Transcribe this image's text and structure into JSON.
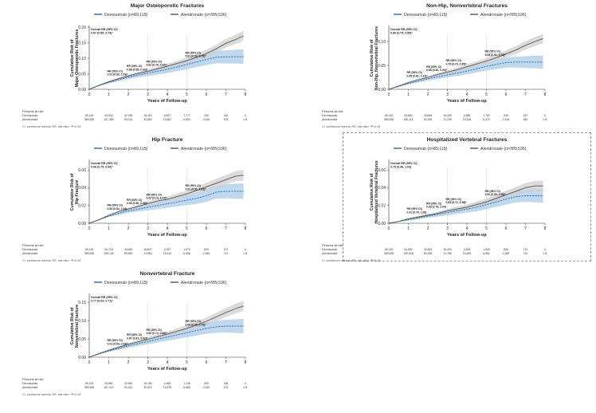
{
  "colors": {
    "denosumab": "#1f6fb3",
    "alendronate": "#555555",
    "denosumab_ci": "#a9cbe8",
    "alendronate_ci": "#cfcfcf",
    "axis": "#333333",
    "dashed_border": "#999999"
  },
  "chart_data": [
    {
      "type": "line",
      "title": "Major Osteoporotic Fractures",
      "ylabel": "Cumulative Risk of Major Osteoporotic Fractures",
      "xlabel": "Years of Follow-up",
      "xlim": [
        0,
        8
      ],
      "ylim": [
        0,
        0.2
      ],
      "yticks": [
        0.0,
        0.05,
        0.1,
        0.15,
        0.2
      ],
      "ytick_labels": [
        "0.00",
        "0.05",
        "0.10",
        "0.15",
        "0.20"
      ],
      "xtick_labels": [
        "0",
        "1",
        "2",
        "3",
        "4",
        "5",
        "6",
        "7",
        "8"
      ],
      "legend": [
        "Denosumab (n=89,115)",
        "Alendronate (n=389,536)"
      ],
      "overall_label": [
        "Overall RR (95% CI)",
        "0.87 (0.85, 0.79)*"
      ],
      "ref_years": [
        3,
        5
      ],
      "annotations": [
        {
          "t": 1,
          "y": 0.035,
          "lines": [
            "RR (95% CI)",
            "0.91 (0.83, 0.93)*"
          ]
        },
        {
          "t": 2,
          "y": 0.051,
          "lines": [
            "RR (95% CI)",
            "0.88 (0.85, 0.93)*"
          ]
        },
        {
          "t": 3,
          "y": 0.066,
          "lines": [
            "RR (95% CI)",
            "0.82 (0.78, 0.87)*"
          ]
        },
        {
          "t": 5,
          "y": 0.094,
          "lines": [
            "RR (95% CI)",
            "0.81 (0.53, 0.78)*"
          ]
        }
      ],
      "series": [
        {
          "name": "Denosumab",
          "ci_width": 0.024,
          "x": [
            0,
            0.5,
            1,
            1.5,
            2,
            2.5,
            3,
            3.5,
            4,
            4.5,
            5,
            5.5,
            6,
            6.5,
            7,
            7.5,
            7.9
          ],
          "y": [
            0,
            0.012,
            0.022,
            0.031,
            0.039,
            0.046,
            0.052,
            0.058,
            0.064,
            0.072,
            0.08,
            0.088,
            0.096,
            0.103,
            0.104,
            0.105,
            0.105
          ]
        },
        {
          "name": "Alendronate",
          "ci_width": 0.016,
          "x": [
            0,
            0.5,
            1,
            1.5,
            2,
            2.5,
            3,
            3.5,
            4,
            4.5,
            5,
            5.5,
            6,
            6.5,
            7,
            7.5,
            7.9
          ],
          "y": [
            0,
            0.013,
            0.024,
            0.034,
            0.043,
            0.051,
            0.058,
            0.066,
            0.074,
            0.083,
            0.092,
            0.103,
            0.115,
            0.13,
            0.148,
            0.16,
            0.172
          ]
        }
      ],
      "risk_table": {
        "heading": "Persons at risk",
        "rows": [
          {
            "label": "Denosumab",
            "values": [
              "89,115",
              "53,532",
              "32,795",
              "18,119",
              "8,837",
              "7,777",
              "330",
              "162",
              "0"
            ]
          },
          {
            "label": "Alendronate",
            "values": [
              "389,536",
              "157,389",
              "94,013",
              "30,880",
              "14,887",
              "6,503",
              "2,616",
              "476",
              "<11"
            ]
          }
        ]
      },
      "footnote": "CI, confidence interval; RR, risk ratio; *P<0.05"
    },
    {
      "type": "line",
      "title": "Non-Hip, Nonvertebral Fractures",
      "ylabel": "Cumulative Risk of Non-Hip, Nonvertebral Fractures",
      "xlabel": "Years of Follow-up",
      "xlim": [
        0,
        8
      ],
      "ylim": [
        0,
        0.13
      ],
      "yticks": [
        0.0,
        0.05,
        0.1
      ],
      "ytick_labels": [
        "0.00",
        "0.05",
        "0.10"
      ],
      "xtick_labels": [
        "0",
        "1",
        "2",
        "3",
        "4",
        "5",
        "6",
        "7",
        "8"
      ],
      "legend": [
        "Denosumab (n=89,115)",
        "Alendronate (n=389,536)"
      ],
      "overall_label": [
        "Overall RR (95% CI)",
        "0.80 (0.75, 0.85)*"
      ],
      "ref_years": [
        3,
        5
      ],
      "annotations": [
        {
          "t": 1,
          "y": 0.02,
          "lines": [
            "RR (95% CI)",
            "0.85 (0.81, 0.97)*"
          ]
        },
        {
          "t": 2,
          "y": 0.032,
          "lines": [
            "RR (95% CI)",
            "0.88 (0.80, 0.93)*"
          ]
        },
        {
          "t": 3,
          "y": 0.045,
          "lines": [
            "RR (95% CI)",
            "0.78 (0.73, 0.85)*"
          ]
        },
        {
          "t": 5,
          "y": 0.064,
          "lines": [
            "RR (95% CI)",
            "0.85 (0.51, 0.78)*"
          ]
        }
      ],
      "series": [
        {
          "name": "Denosumab",
          "ci_width": 0.014,
          "x": [
            0,
            0.5,
            1,
            1.5,
            2,
            2.5,
            3,
            3.5,
            4,
            4.5,
            5,
            5.5,
            6,
            6.5,
            7,
            7.5,
            7.9
          ],
          "y": [
            0,
            0.006,
            0.012,
            0.017,
            0.022,
            0.026,
            0.03,
            0.034,
            0.038,
            0.043,
            0.048,
            0.052,
            0.056,
            0.057,
            0.057,
            0.057,
            0.057
          ]
        },
        {
          "name": "Alendronate",
          "ci_width": 0.01,
          "x": [
            0,
            0.5,
            1,
            1.5,
            2,
            2.5,
            3,
            3.5,
            4,
            4.5,
            5,
            5.5,
            6,
            6.5,
            7,
            7.5,
            7.9
          ],
          "y": [
            0,
            0.007,
            0.014,
            0.02,
            0.025,
            0.031,
            0.036,
            0.041,
            0.047,
            0.053,
            0.059,
            0.066,
            0.074,
            0.082,
            0.092,
            0.1,
            0.106
          ]
        }
      ],
      "risk_table": {
        "heading": "Persons at risk",
        "rows": [
          {
            "label": "Denosumab",
            "values": [
              "89,115",
              "53,860",
              "33,659",
              "16,339",
              "4,686",
              "1,782",
              "939",
              "167",
              "0"
            ]
          },
          {
            "label": "Alendronate",
            "values": [
              "389,536",
              "156,421",
              "93,159",
              "31,208",
              "15,126",
              "6,470",
              "2,418",
              "482",
              "<11"
            ]
          }
        ]
      },
      "footnote": "CI, confidence interval; RR, risk ratio; *P<0.05"
    },
    {
      "type": "line",
      "title": "Hip Fracture",
      "ylabel": "Cumulative Risk of Hip Fracture",
      "xlabel": "Years of Follow-up",
      "xlim": [
        0,
        8
      ],
      "ylim": [
        0,
        0.07
      ],
      "yticks": [
        0.0,
        0.02,
        0.04,
        0.06
      ],
      "ytick_labels": [
        "0.00",
        "0.02",
        "0.04",
        "0.06"
      ],
      "xtick_labels": [
        "0",
        "1",
        "2",
        "3",
        "4",
        "5",
        "6",
        "7",
        "8"
      ],
      "legend": [
        "Denosumab (n=89,115)",
        "Alendronate (n=389,536)"
      ],
      "overall_label": [
        "Overall RR (95% CI)",
        "0.68 (0.75, 0.90)*"
      ],
      "ref_years": [
        3,
        5
      ],
      "annotations": [
        {
          "t": 1,
          "y": 0.012,
          "lines": [
            "RR (95% CI)",
            "0.84 (0.84, 1.04)"
          ]
        },
        {
          "t": 2,
          "y": 0.018,
          "lines": [
            "RR (95% CI)",
            "0.85 (0.80, 0.98)*"
          ]
        },
        {
          "t": 3,
          "y": 0.024,
          "lines": [
            "RR (95% CI)",
            "0.82 (0.74, 0.77)*"
          ]
        },
        {
          "t": 5,
          "y": 0.034,
          "lines": [
            "RR (95% CI)",
            "0.81 (0.51, 0.63)*"
          ]
        }
      ],
      "series": [
        {
          "name": "Denosumab",
          "ci_width": 0.009,
          "x": [
            0,
            0.5,
            1,
            1.5,
            2,
            2.5,
            3,
            3.5,
            4,
            4.5,
            5,
            5.5,
            6,
            6.5,
            7,
            7.5,
            7.9
          ],
          "y": [
            0,
            0.004,
            0.008,
            0.011,
            0.014,
            0.016,
            0.018,
            0.02,
            0.022,
            0.024,
            0.026,
            0.028,
            0.031,
            0.035,
            0.036,
            0.036,
            0.036
          ]
        },
        {
          "name": "Alendronate",
          "ci_width": 0.006,
          "x": [
            0,
            0.5,
            1,
            1.5,
            2,
            2.5,
            3,
            3.5,
            4,
            4.5,
            5,
            5.5,
            6,
            6.5,
            7,
            7.5,
            7.9
          ],
          "y": [
            0,
            0.004,
            0.009,
            0.013,
            0.016,
            0.019,
            0.022,
            0.025,
            0.027,
            0.03,
            0.033,
            0.037,
            0.041,
            0.045,
            0.049,
            0.053,
            0.054
          ]
        }
      ],
      "risk_table": {
        "heading": "Persons at risk",
        "rows": [
          {
            "label": "Denosumab",
            "values": [
              "89,115",
              "54,715",
              "33,069",
              "16,827",
              "4,947",
              "1,870",
              "825",
              "172",
              "0"
            ]
          },
          {
            "label": "Alendronate",
            "values": [
              "389,536",
              "159,146",
              "95,969",
              "31,894",
              "15,410",
              "6,858",
              "2,548",
              "714",
              "<11"
            ]
          }
        ]
      },
      "footnote": "CI, confidence interval; RR, risk ratio; *P<0.05"
    },
    {
      "type": "line",
      "title": "Hospitalized Vertebral Fractures",
      "ylabel": "Cumulative Risk of Hospitalized Vertebral Fractures",
      "xlabel": "Years of Follow-up",
      "xlim": [
        0,
        8
      ],
      "ylim": [
        0,
        0.07
      ],
      "yticks": [
        0.0,
        0.02,
        0.04,
        0.06
      ],
      "ytick_labels": [
        "0.00",
        "0.02",
        "0.04",
        "0.06"
      ],
      "xtick_labels": [
        "0",
        "1",
        "2",
        "3",
        "4",
        "5",
        "6",
        "7",
        "8"
      ],
      "legend": [
        "Denosumab (n=89,115)",
        "Alendronate (n=389,536)"
      ],
      "overall_label": [
        "Overall RR (95% CI)",
        "0.75 (0.48, 1.03)"
      ],
      "ref_years": [
        3,
        5
      ],
      "annotations": [
        {
          "t": 1,
          "y": 0.008,
          "lines": [
            "RR (95% CI)",
            "0.91 (0.76, 1.08)"
          ]
        },
        {
          "t": 2,
          "y": 0.014,
          "lines": [
            "RR (95% CI)",
            "0.90 (0.78, 1.04)"
          ]
        },
        {
          "t": 3,
          "y": 0.019,
          "lines": [
            "RR (95% CI)",
            "0.85 (0.72, 0.98)*"
          ]
        },
        {
          "t": 5,
          "y": 0.028,
          "lines": [
            "RR (95% CI)",
            "0.82 (0.65, 0.99)*"
          ]
        }
      ],
      "series": [
        {
          "name": "Denosumab",
          "ci_width": 0.008,
          "x": [
            0,
            0.5,
            1,
            1.5,
            2,
            2.5,
            3,
            3.5,
            4,
            4.5,
            5,
            5.5,
            6,
            6.5,
            7,
            7.5,
            7.9
          ],
          "y": [
            0,
            0.002,
            0.004,
            0.006,
            0.008,
            0.01,
            0.012,
            0.014,
            0.016,
            0.018,
            0.021,
            0.024,
            0.027,
            0.03,
            0.031,
            0.031,
            0.031
          ]
        },
        {
          "name": "Alendronate",
          "ci_width": 0.006,
          "x": [
            0,
            0.5,
            1,
            1.5,
            2,
            2.5,
            3,
            3.5,
            4,
            4.5,
            5,
            5.5,
            6,
            6.5,
            7,
            7.5,
            7.9
          ],
          "y": [
            0,
            0.002,
            0.005,
            0.007,
            0.009,
            0.011,
            0.014,
            0.016,
            0.018,
            0.021,
            0.024,
            0.028,
            0.032,
            0.036,
            0.04,
            0.042,
            0.042
          ]
        }
      ],
      "risk_table": {
        "heading": "Persons at risk",
        "rows": [
          {
            "label": "Denosumab",
            "values": [
              "89,115",
              "54,582",
              "33,393",
              "16,403",
              "4,826",
              "1,849",
              "806",
              "172",
              "0"
            ]
          },
          {
            "label": "Alendronate",
            "values": [
              "389,536",
              "159,526",
              "96,155",
              "31,765",
              "15,469",
              "6,861",
              "2,364",
              "720",
              "<11"
            ]
          }
        ]
      },
      "footnote": "CI, confidence interval; RR, risk ratio; *P<0.05"
    },
    {
      "type": "line",
      "title": "Nonvertebral Fracture",
      "ylabel": "Cumulative Risk of Nonvertebral Fracture",
      "xlabel": "Years of Follow-up",
      "xlim": [
        0,
        8
      ],
      "ylim": [
        0,
        0.17
      ],
      "yticks": [
        0.0,
        0.05,
        0.1,
        0.15
      ],
      "ytick_labels": [
        "0.00",
        "0.05",
        "0.10",
        "0.15"
      ],
      "xtick_labels": [
        "0",
        "1",
        "2",
        "3",
        "4",
        "5",
        "6",
        "7",
        "8"
      ],
      "legend": [
        "Denosumab (n=89,115)",
        "Alendronate (n=389,536)"
      ],
      "overall_label": [
        "Overall RR (95% CI)",
        "0.77 (0.63, 0.71)*"
      ],
      "ref_years": [
        3,
        5
      ],
      "annotations": [
        {
          "t": 1,
          "y": 0.026,
          "lines": [
            "RR (95% CI)",
            "0.91 (0.83, 0.93)*"
          ]
        },
        {
          "t": 2,
          "y": 0.041,
          "lines": [
            "RR (95% CI)",
            "0.87 (0.81, 0.92)*"
          ]
        },
        {
          "t": 3,
          "y": 0.055,
          "lines": [
            "RR (95% CI)",
            "0.80 (0.74, 0.86)*"
          ]
        },
        {
          "t": 5,
          "y": 0.078,
          "lines": [
            "RR (95% CI)",
            "0.69 (0.59, 0.79)*"
          ]
        }
      ],
      "series": [
        {
          "name": "Denosumab",
          "ci_width": 0.02,
          "x": [
            0,
            0.5,
            1,
            1.5,
            2,
            2.5,
            3,
            3.5,
            4,
            4.5,
            5,
            5.5,
            6,
            6.5,
            7,
            7.5,
            7.9
          ],
          "y": [
            0,
            0.009,
            0.017,
            0.024,
            0.031,
            0.037,
            0.043,
            0.049,
            0.055,
            0.061,
            0.067,
            0.073,
            0.079,
            0.083,
            0.085,
            0.085,
            0.085
          ]
        },
        {
          "name": "Alendronate",
          "ci_width": 0.014,
          "x": [
            0,
            0.5,
            1,
            1.5,
            2,
            2.5,
            3,
            3.5,
            4,
            4.5,
            5,
            5.5,
            6,
            6.5,
            7,
            7.5,
            7.9
          ],
          "y": [
            0,
            0.01,
            0.019,
            0.027,
            0.035,
            0.042,
            0.049,
            0.056,
            0.063,
            0.071,
            0.079,
            0.088,
            0.098,
            0.11,
            0.122,
            0.133,
            0.14
          ]
        }
      ],
      "risk_table": {
        "heading": "Persons at risk",
        "rows": [
          {
            "label": "Denosumab",
            "values": [
              "89,115",
              "53,681",
              "32,960",
              "16,180",
              "4,469",
              "1,746",
              "599",
              "166",
              "0"
            ]
          },
          {
            "label": "Alendronate",
            "values": [
              "389,536",
              "157,447",
              "94,132",
              "30,619",
              "14,575",
              "6,865",
              "2,616",
              "476",
              "<11"
            ]
          }
        ]
      },
      "footnote": "CI, confidence interval; RR, risk ratio; *P<0.05"
    }
  ]
}
